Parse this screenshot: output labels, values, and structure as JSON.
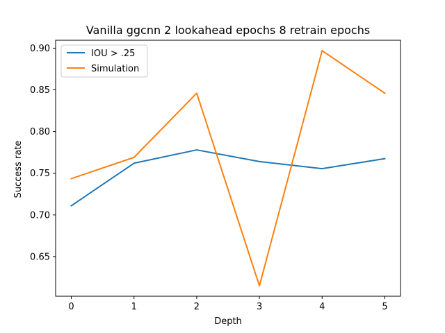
{
  "chart_data": {
    "type": "line",
    "title": "Vanilla ggcnn 2 lookahead epochs 8 retrain epochs",
    "xlabel": "Depth",
    "ylabel": "Success rate",
    "x": [
      0,
      1,
      2,
      3,
      4,
      5
    ],
    "xticks": [
      "0",
      "1",
      "2",
      "3",
      "4",
      "5"
    ],
    "yticks": [
      "0.65",
      "0.70",
      "0.75",
      "0.80",
      "0.85",
      "0.90"
    ],
    "ytick_values": [
      0.65,
      0.7,
      0.75,
      0.8,
      0.85,
      0.9
    ],
    "xlim": [
      -0.25,
      5.25
    ],
    "ylim": [
      0.6025,
      0.9095
    ],
    "grid": false,
    "legend_position": "top-left",
    "series": [
      {
        "name": "IOU > .25",
        "color": "#1f77b4",
        "values": [
          0.711,
          0.762,
          0.778,
          0.764,
          0.7555,
          0.7675
        ]
      },
      {
        "name": "Simulation",
        "color": "#ff7f0e",
        "values": [
          0.7435,
          0.769,
          0.846,
          0.615,
          0.897,
          0.846
        ]
      }
    ]
  }
}
